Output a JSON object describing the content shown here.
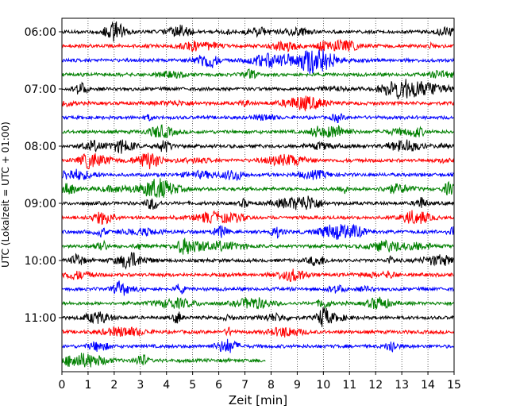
{
  "chart_data": {
    "type": "line",
    "title": "",
    "xlabel": "Zeit  [min]",
    "ylabel": "UTC (Lokalzeit = UTC + 01:00)",
    "xlim": [
      0,
      15
    ],
    "x_ticks": [
      "0",
      "1",
      "2",
      "3",
      "4",
      "5",
      "6",
      "7",
      "8",
      "9",
      "10",
      "11",
      "12",
      "13",
      "14",
      "15"
    ],
    "y_ticks": [
      "06:00",
      "07:00",
      "08:00",
      "09:00",
      "10:00",
      "11:00"
    ],
    "grid": "vertical dotted lines at every minute",
    "trace_colors": [
      "#000000",
      "#ff0000",
      "#0000ff",
      "#008000"
    ],
    "trace_minutes": 15,
    "traces": [
      {
        "time": "06:00",
        "color": "#000000",
        "end_min": 15
      },
      {
        "time": "06:15",
        "color": "#ff0000",
        "end_min": 15
      },
      {
        "time": "06:30",
        "color": "#0000ff",
        "end_min": 15
      },
      {
        "time": "06:45",
        "color": "#008000",
        "end_min": 15
      },
      {
        "time": "07:00",
        "color": "#000000",
        "end_min": 15
      },
      {
        "time": "07:15",
        "color": "#ff0000",
        "end_min": 15
      },
      {
        "time": "07:30",
        "color": "#0000ff",
        "end_min": 15
      },
      {
        "time": "07:45",
        "color": "#008000",
        "end_min": 15
      },
      {
        "time": "08:00",
        "color": "#000000",
        "end_min": 15
      },
      {
        "time": "08:15",
        "color": "#ff0000",
        "end_min": 15
      },
      {
        "time": "08:30",
        "color": "#0000ff",
        "end_min": 15
      },
      {
        "time": "08:45",
        "color": "#008000",
        "end_min": 15
      },
      {
        "time": "09:00",
        "color": "#000000",
        "end_min": 15
      },
      {
        "time": "09:15",
        "color": "#ff0000",
        "end_min": 15
      },
      {
        "time": "09:30",
        "color": "#0000ff",
        "end_min": 15
      },
      {
        "time": "09:45",
        "color": "#008000",
        "end_min": 15
      },
      {
        "time": "10:00",
        "color": "#000000",
        "end_min": 15
      },
      {
        "time": "10:15",
        "color": "#ff0000",
        "end_min": 15
      },
      {
        "time": "10:30",
        "color": "#0000ff",
        "end_min": 15
      },
      {
        "time": "10:45",
        "color": "#008000",
        "end_min": 15
      },
      {
        "time": "11:00",
        "color": "#000000",
        "end_min": 15
      },
      {
        "time": "11:15",
        "color": "#ff0000",
        "end_min": 15
      },
      {
        "time": "11:30",
        "color": "#0000ff",
        "end_min": 15
      },
      {
        "time": "11:45",
        "color": "#008000",
        "end_min": 7.8
      }
    ]
  }
}
